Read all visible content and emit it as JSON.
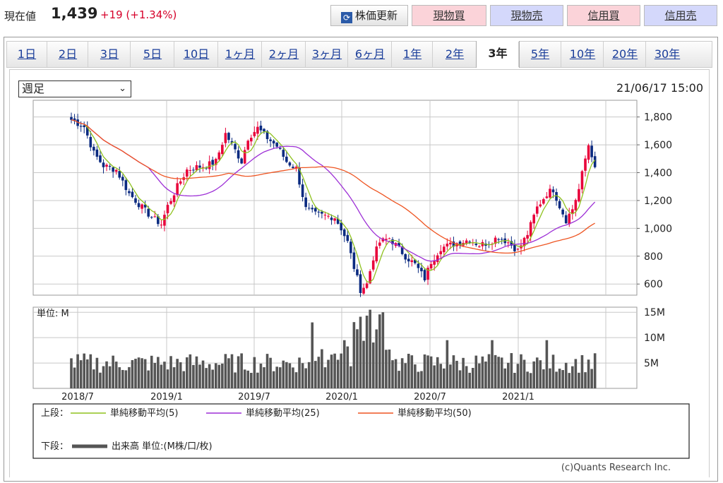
{
  "header": {
    "price_label": "現在値",
    "price_value": "1,439",
    "price_change": "+19 (+1.34%)",
    "refresh_button": "株価更新",
    "buttons": [
      {
        "label": "現物買",
        "style": "pink"
      },
      {
        "label": "現物売",
        "style": "blue"
      },
      {
        "label": "信用買",
        "style": "pink"
      },
      {
        "label": "信用売",
        "style": "blue"
      }
    ]
  },
  "tabs": [
    "1日",
    "2日",
    "3日",
    "5日",
    "10日",
    "1ヶ月",
    "2ヶ月",
    "3ヶ月",
    "6ヶ月",
    "1年",
    "2年",
    "3年",
    "5年",
    "10年",
    "20年",
    "30年"
  ],
  "active_tab": "3年",
  "period_select": {
    "value": "週足"
  },
  "timestamp": "21/06/17 15:00",
  "credit": "(c)Quants Research Inc.",
  "colors": {
    "up": "#e8003a",
    "down": "#0a2a80",
    "ma5": "#8fc21f",
    "ma25": "#9d2fd6",
    "ma50": "#ee5522",
    "volume": "#555555"
  },
  "chart_data": {
    "type": "candlestick",
    "timeframe": "weekly",
    "x_tick_labels": [
      "2018/7",
      "2019/1",
      "2019/7",
      "2020/1",
      "2020/7",
      "2021/1"
    ],
    "price_axis": {
      "ticks": [
        600,
        800,
        1000,
        1200,
        1400,
        1600,
        1800
      ],
      "tick_labels": [
        "600",
        "800",
        "1,000",
        "1,200",
        "1,400",
        "1,600",
        "1,800"
      ],
      "range": [
        520,
        1920
      ]
    },
    "volume_axis": {
      "unit_label": "単位: M",
      "ticks": [
        5,
        10,
        15
      ],
      "tick_labels": [
        "5M",
        "10M",
        "15M"
      ],
      "range": [
        0,
        16
      ]
    },
    "close_keypoints": [
      [
        0,
        1780
      ],
      [
        4,
        1730
      ],
      [
        7,
        1540
      ],
      [
        10,
        1450
      ],
      [
        14,
        1420
      ],
      [
        18,
        1250
      ],
      [
        22,
        1150
      ],
      [
        25,
        1080
      ],
      [
        28,
        1030
      ],
      [
        30,
        1160
      ],
      [
        33,
        1300
      ],
      [
        36,
        1420
      ],
      [
        39,
        1440
      ],
      [
        42,
        1450
      ],
      [
        45,
        1480
      ],
      [
        48,
        1680
      ],
      [
        51,
        1560
      ],
      [
        53,
        1480
      ],
      [
        55,
        1650
      ],
      [
        58,
        1720
      ],
      [
        61,
        1650
      ],
      [
        64,
        1590
      ],
      [
        67,
        1480
      ],
      [
        70,
        1430
      ],
      [
        73,
        1140
      ],
      [
        76,
        1100
      ],
      [
        79,
        1090
      ],
      [
        82,
        1080
      ],
      [
        84,
        1000
      ],
      [
        86,
        900
      ],
      [
        88,
        720
      ],
      [
        90,
        560
      ],
      [
        92,
        600
      ],
      [
        94,
        790
      ],
      [
        96,
        900
      ],
      [
        99,
        930
      ],
      [
        101,
        880
      ],
      [
        104,
        800
      ],
      [
        107,
        740
      ],
      [
        110,
        640
      ],
      [
        112,
        760
      ],
      [
        115,
        860
      ],
      [
        118,
        880
      ],
      [
        121,
        900
      ],
      [
        124,
        920
      ],
      [
        127,
        880
      ],
      [
        130,
        900
      ],
      [
        133,
        940
      ],
      [
        136,
        900
      ],
      [
        139,
        840
      ],
      [
        142,
        960
      ],
      [
        145,
        1150
      ],
      [
        148,
        1250
      ],
      [
        150,
        1280
      ],
      [
        152,
        1160
      ],
      [
        154,
        1060
      ],
      [
        156,
        1140
      ],
      [
        158,
        1280
      ],
      [
        160,
        1500
      ],
      [
        161,
        1600
      ],
      [
        162,
        1530
      ],
      [
        163,
        1439
      ]
    ],
    "legend": {
      "upper_label": "上段：",
      "lower_label": "下段：",
      "items": [
        {
          "label": "単純移動平均(5)",
          "color": "#8fc21f"
        },
        {
          "label": "単純移動平均(25)",
          "color": "#9d2fd6"
        },
        {
          "label": "単純移動平均(50)",
          "color": "#ee5522"
        }
      ],
      "volume_label": "出来高 単位:(M株/口/枚)"
    }
  }
}
